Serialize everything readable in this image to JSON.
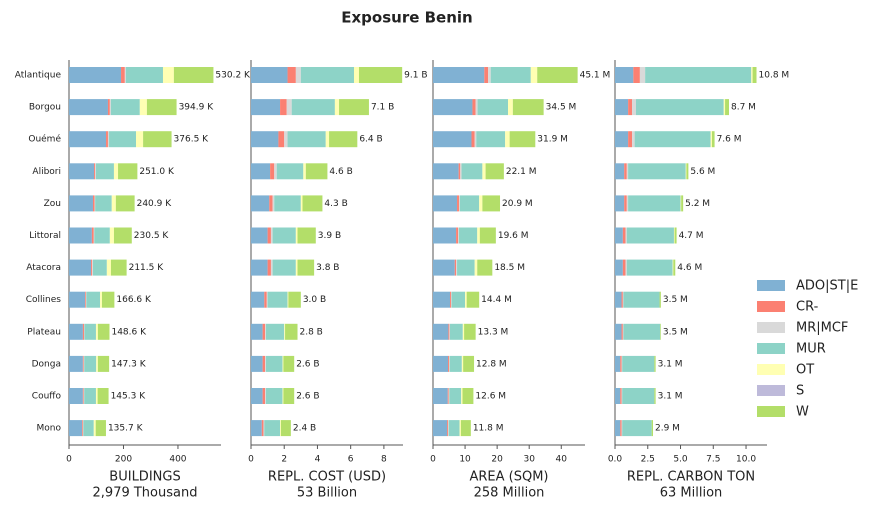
{
  "title": "Exposure Benin",
  "categories": [
    "Atlantique",
    "Borgou",
    "Ouémé",
    "Alibori",
    "Zou",
    "Littoral",
    "Atacora",
    "Collines",
    "Plateau",
    "Donga",
    "Couffo",
    "Mono"
  ],
  "legend": {
    "corner": "right",
    "series": [
      {
        "name": "ADO|ST|E",
        "color": "#80b1d3"
      },
      {
        "name": "CR-",
        "color": "#fb8072"
      },
      {
        "name": "MR|MCF",
        "color": "#d9d9d9"
      },
      {
        "name": "MUR",
        "color": "#8dd3c7"
      },
      {
        "name": "OT",
        "color": "#ffffb3"
      },
      {
        "name": "S",
        "color": "#bebada"
      },
      {
        "name": "W",
        "color": "#b3de69"
      }
    ]
  },
  "chart_data": [
    {
      "type": "bar",
      "orientation": "horizontal",
      "xlabel": "BUILDINGS",
      "xsublabel": "2,979 Thousand",
      "xlim": [
        0,
        558
      ],
      "xticks": [
        0,
        200,
        400
      ],
      "series": [
        {
          "values": [
            191,
            143,
            136,
            92,
            88,
            84,
            81,
            59,
            51,
            51,
            51,
            48
          ]
        },
        {
          "values": [
            14,
            7,
            7,
            4,
            6,
            7,
            4,
            3,
            4,
            3,
            3,
            3
          ]
        },
        {
          "values": [
            4,
            4,
            4,
            3,
            2,
            2,
            3,
            2,
            2,
            2,
            2,
            2
          ]
        },
        {
          "values": [
            136,
            106,
            99,
            66,
            61,
            57,
            51,
            50,
            42,
            44,
            43,
            38
          ]
        },
        {
          "values": [
            40,
            26,
            26,
            15,
            15,
            15,
            15,
            7,
            7,
            6,
            6,
            7
          ]
        },
        {
          "values": [
            0,
            0,
            0,
            0,
            0,
            0,
            0,
            0,
            0,
            0,
            0,
            0
          ]
        },
        {
          "values": [
            145.2,
            108.9,
            104.5,
            71,
            68.9,
            65.5,
            57.5,
            45.6,
            42.6,
            41.3,
            40.3,
            37.7
          ]
        }
      ],
      "totals": [
        530.2,
        394.9,
        376.5,
        251.0,
        240.9,
        230.5,
        211.5,
        166.6,
        148.6,
        147.3,
        145.3,
        135.7
      ],
      "total_labels": [
        "530.2 K",
        "394.9 K",
        "376.5 K",
        "251.0 K",
        "240.9 K",
        "230.5 K",
        "211.5 K",
        "166.6 K",
        "148.6 K",
        "147.3 K",
        "145.3 K",
        "135.7 K"
      ]
    },
    {
      "type": "bar",
      "orientation": "horizontal",
      "xlabel": "REPL. COST (USD)",
      "xsublabel": "53 Billion",
      "xlim": [
        0,
        9.15
      ],
      "xticks": [
        0,
        2,
        4,
        6,
        8
      ],
      "series": [
        {
          "values": [
            2.2,
            1.75,
            1.65,
            1.15,
            1.1,
            1.0,
            1.0,
            0.8,
            0.7,
            0.7,
            0.7,
            0.65
          ]
        },
        {
          "values": [
            0.5,
            0.4,
            0.35,
            0.25,
            0.2,
            0.2,
            0.2,
            0.15,
            0.15,
            0.15,
            0.15,
            0.1
          ]
        },
        {
          "values": [
            0.3,
            0.3,
            0.2,
            0.15,
            0.1,
            0.1,
            0.1,
            0.05,
            0.05,
            0.05,
            0.05,
            0.05
          ]
        },
        {
          "values": [
            3.2,
            2.6,
            2.3,
            1.6,
            1.6,
            1.4,
            1.4,
            1.2,
            1.1,
            1.0,
            1.0,
            0.95
          ]
        },
        {
          "values": [
            0.3,
            0.25,
            0.2,
            0.15,
            0.1,
            0.1,
            0.1,
            0.05,
            0.05,
            0.05,
            0.05,
            0.05
          ]
        },
        {
          "values": [
            0,
            0,
            0,
            0,
            0,
            0,
            0,
            0,
            0,
            0,
            0,
            0
          ]
        },
        {
          "values": [
            2.6,
            1.8,
            1.7,
            1.3,
            1.2,
            1.1,
            1.0,
            0.75,
            0.75,
            0.65,
            0.65,
            0.6
          ]
        }
      ],
      "totals": [
        9.1,
        7.1,
        6.4,
        4.6,
        4.3,
        3.9,
        3.8,
        3.0,
        2.8,
        2.6,
        2.6,
        2.4
      ],
      "total_labels": [
        "9.1 B",
        "7.1 B",
        "6.4 B",
        "4.6 B",
        "4.3 B",
        "3.9 B",
        "3.8 B",
        "3.0 B",
        "2.8 B",
        "2.6 B",
        "2.6 B",
        "2.4 B"
      ]
    },
    {
      "type": "bar",
      "orientation": "horizontal",
      "xlabel": "AREA (SQM)",
      "xsublabel": "258 Million",
      "xlim": [
        0,
        47.4
      ],
      "xticks": [
        0,
        10,
        20,
        30,
        40
      ],
      "series": [
        {
          "values": [
            16,
            12.3,
            12,
            8,
            7.5,
            7.2,
            6.8,
            5.3,
            4.8,
            4.7,
            4.6,
            4.4
          ]
        },
        {
          "values": [
            1.2,
            1.0,
            1.0,
            0.5,
            0.6,
            0.6,
            0.4,
            0.3,
            0.3,
            0.3,
            0.3,
            0.3
          ]
        },
        {
          "values": [
            0.8,
            0.6,
            0.5,
            0.4,
            0.3,
            0.3,
            0.3,
            0.2,
            0.2,
            0.2,
            0.2,
            0.2
          ]
        },
        {
          "values": [
            12.5,
            9.5,
            9,
            6.5,
            6,
            5.7,
            5.5,
            4.2,
            4,
            3.8,
            3.7,
            3.4
          ]
        },
        {
          "values": [
            2,
            1.5,
            1.4,
            1,
            1,
            0.8,
            0.8,
            0.5,
            0.4,
            0.4,
            0.4,
            0.4
          ]
        },
        {
          "values": [
            0,
            0,
            0,
            0,
            0,
            0,
            0,
            0,
            0,
            0,
            0,
            0
          ]
        },
        {
          "values": [
            12.6,
            9.6,
            8.0,
            5.7,
            5.5,
            5.0,
            4.7,
            3.9,
            3.6,
            3.4,
            3.4,
            3.1
          ]
        }
      ],
      "totals": [
        45.1,
        34.5,
        31.9,
        22.1,
        20.9,
        19.6,
        18.5,
        14.4,
        13.3,
        12.8,
        12.6,
        11.8
      ],
      "total_labels": [
        "45.1 M",
        "34.5 M",
        "31.9 M",
        "22.1 M",
        "20.9 M",
        "19.6 M",
        "18.5 M",
        "14.4 M",
        "13.3 M",
        "12.8 M",
        "12.6 M",
        "11.8 M"
      ]
    },
    {
      "type": "bar",
      "orientation": "horizontal",
      "xlabel": "REPL. CARBON TON",
      "xsublabel": "63 Million",
      "xlim": [
        0,
        11.6
      ],
      "xticks": [
        {
          "value": 0,
          "label": "0.0"
        },
        2.5,
        {
          "value": 5,
          "label": "5.0"
        },
        7.5,
        {
          "value": 10,
          "label": "10.0"
        }
      ],
      "series": [
        {
          "values": [
            1.4,
            1.0,
            1.0,
            0.7,
            0.7,
            0.6,
            0.6,
            0.5,
            0.5,
            0.4,
            0.4,
            0.4
          ]
        },
        {
          "values": [
            0.5,
            0.3,
            0.3,
            0.2,
            0.2,
            0.2,
            0.2,
            0.1,
            0.1,
            0.1,
            0.1,
            0.1
          ]
        },
        {
          "values": [
            0.4,
            0.3,
            0.2,
            0.1,
            0.1,
            0.1,
            0.1,
            0.05,
            0.05,
            0.05,
            0.05,
            0.05
          ]
        },
        {
          "values": [
            8.1,
            6.7,
            5.8,
            4.4,
            4.0,
            3.6,
            3.5,
            2.75,
            2.8,
            2.45,
            2.45,
            2.25
          ]
        },
        {
          "values": [
            0.1,
            0.1,
            0.1,
            0.05,
            0.05,
            0.05,
            0.05,
            0,
            0,
            0,
            0,
            0
          ]
        },
        {
          "values": [
            0,
            0,
            0,
            0,
            0,
            0,
            0,
            0,
            0,
            0,
            0,
            0
          ]
        },
        {
          "values": [
            0.3,
            0.3,
            0.2,
            0.15,
            0.15,
            0.15,
            0.15,
            0.1,
            0.05,
            0.1,
            0.1,
            0.1
          ]
        }
      ],
      "totals": [
        10.8,
        8.7,
        7.6,
        5.6,
        5.2,
        4.7,
        4.6,
        3.5,
        3.5,
        3.1,
        3.1,
        2.9
      ],
      "total_labels": [
        "10.8 M",
        "8.7 M",
        "7.6 M",
        "5.6 M",
        "5.2 M",
        "4.7 M",
        "4.6 M",
        "3.5 M",
        "3.5 M",
        "3.1 M",
        "3.1 M",
        "2.9 M"
      ]
    }
  ]
}
